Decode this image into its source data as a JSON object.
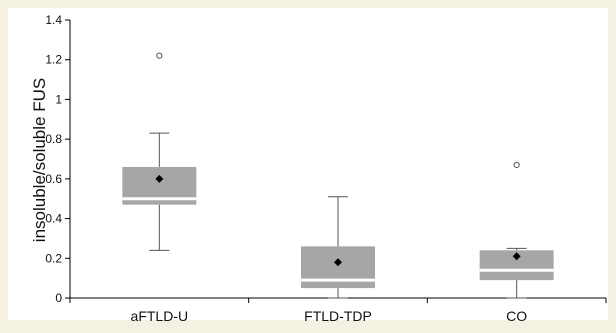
{
  "colors": {
    "background": "#f4f1e3",
    "plot_background": "#ffffff",
    "box_fill": "#a6a6a6",
    "median_line": "#ffffff",
    "whisker": "#555555",
    "mean_marker": "#000000",
    "outlier": "#555555"
  },
  "chart_data": {
    "type": "box",
    "title": "",
    "xlabel": "",
    "ylabel": "insoluble/soluble FUS",
    "ylim": [
      0,
      1.4
    ],
    "yticks": [
      "0",
      "0.2",
      "0.4",
      "0.6",
      "0.8",
      "1",
      "1.2",
      "1.4"
    ],
    "grid": false,
    "categories": [
      "aFTLD-U",
      "FTLD-TDP",
      "CO"
    ],
    "boxes": [
      {
        "category": "aFTLD-U",
        "whisker_low": 0.24,
        "q1": 0.47,
        "median": 0.5,
        "q3": 0.66,
        "whisker_high": 0.83,
        "mean": 0.6,
        "outliers": [
          1.22
        ]
      },
      {
        "category": "FTLD-TDP",
        "whisker_low": 0.0,
        "q1": 0.05,
        "median": 0.09,
        "q3": 0.26,
        "whisker_high": 0.51,
        "mean": 0.18,
        "outliers": []
      },
      {
        "category": "CO",
        "whisker_low": 0.0,
        "q1": 0.09,
        "median": 0.14,
        "q3": 0.24,
        "whisker_high": 0.25,
        "mean": 0.21,
        "outliers": [
          0.67
        ]
      }
    ]
  }
}
